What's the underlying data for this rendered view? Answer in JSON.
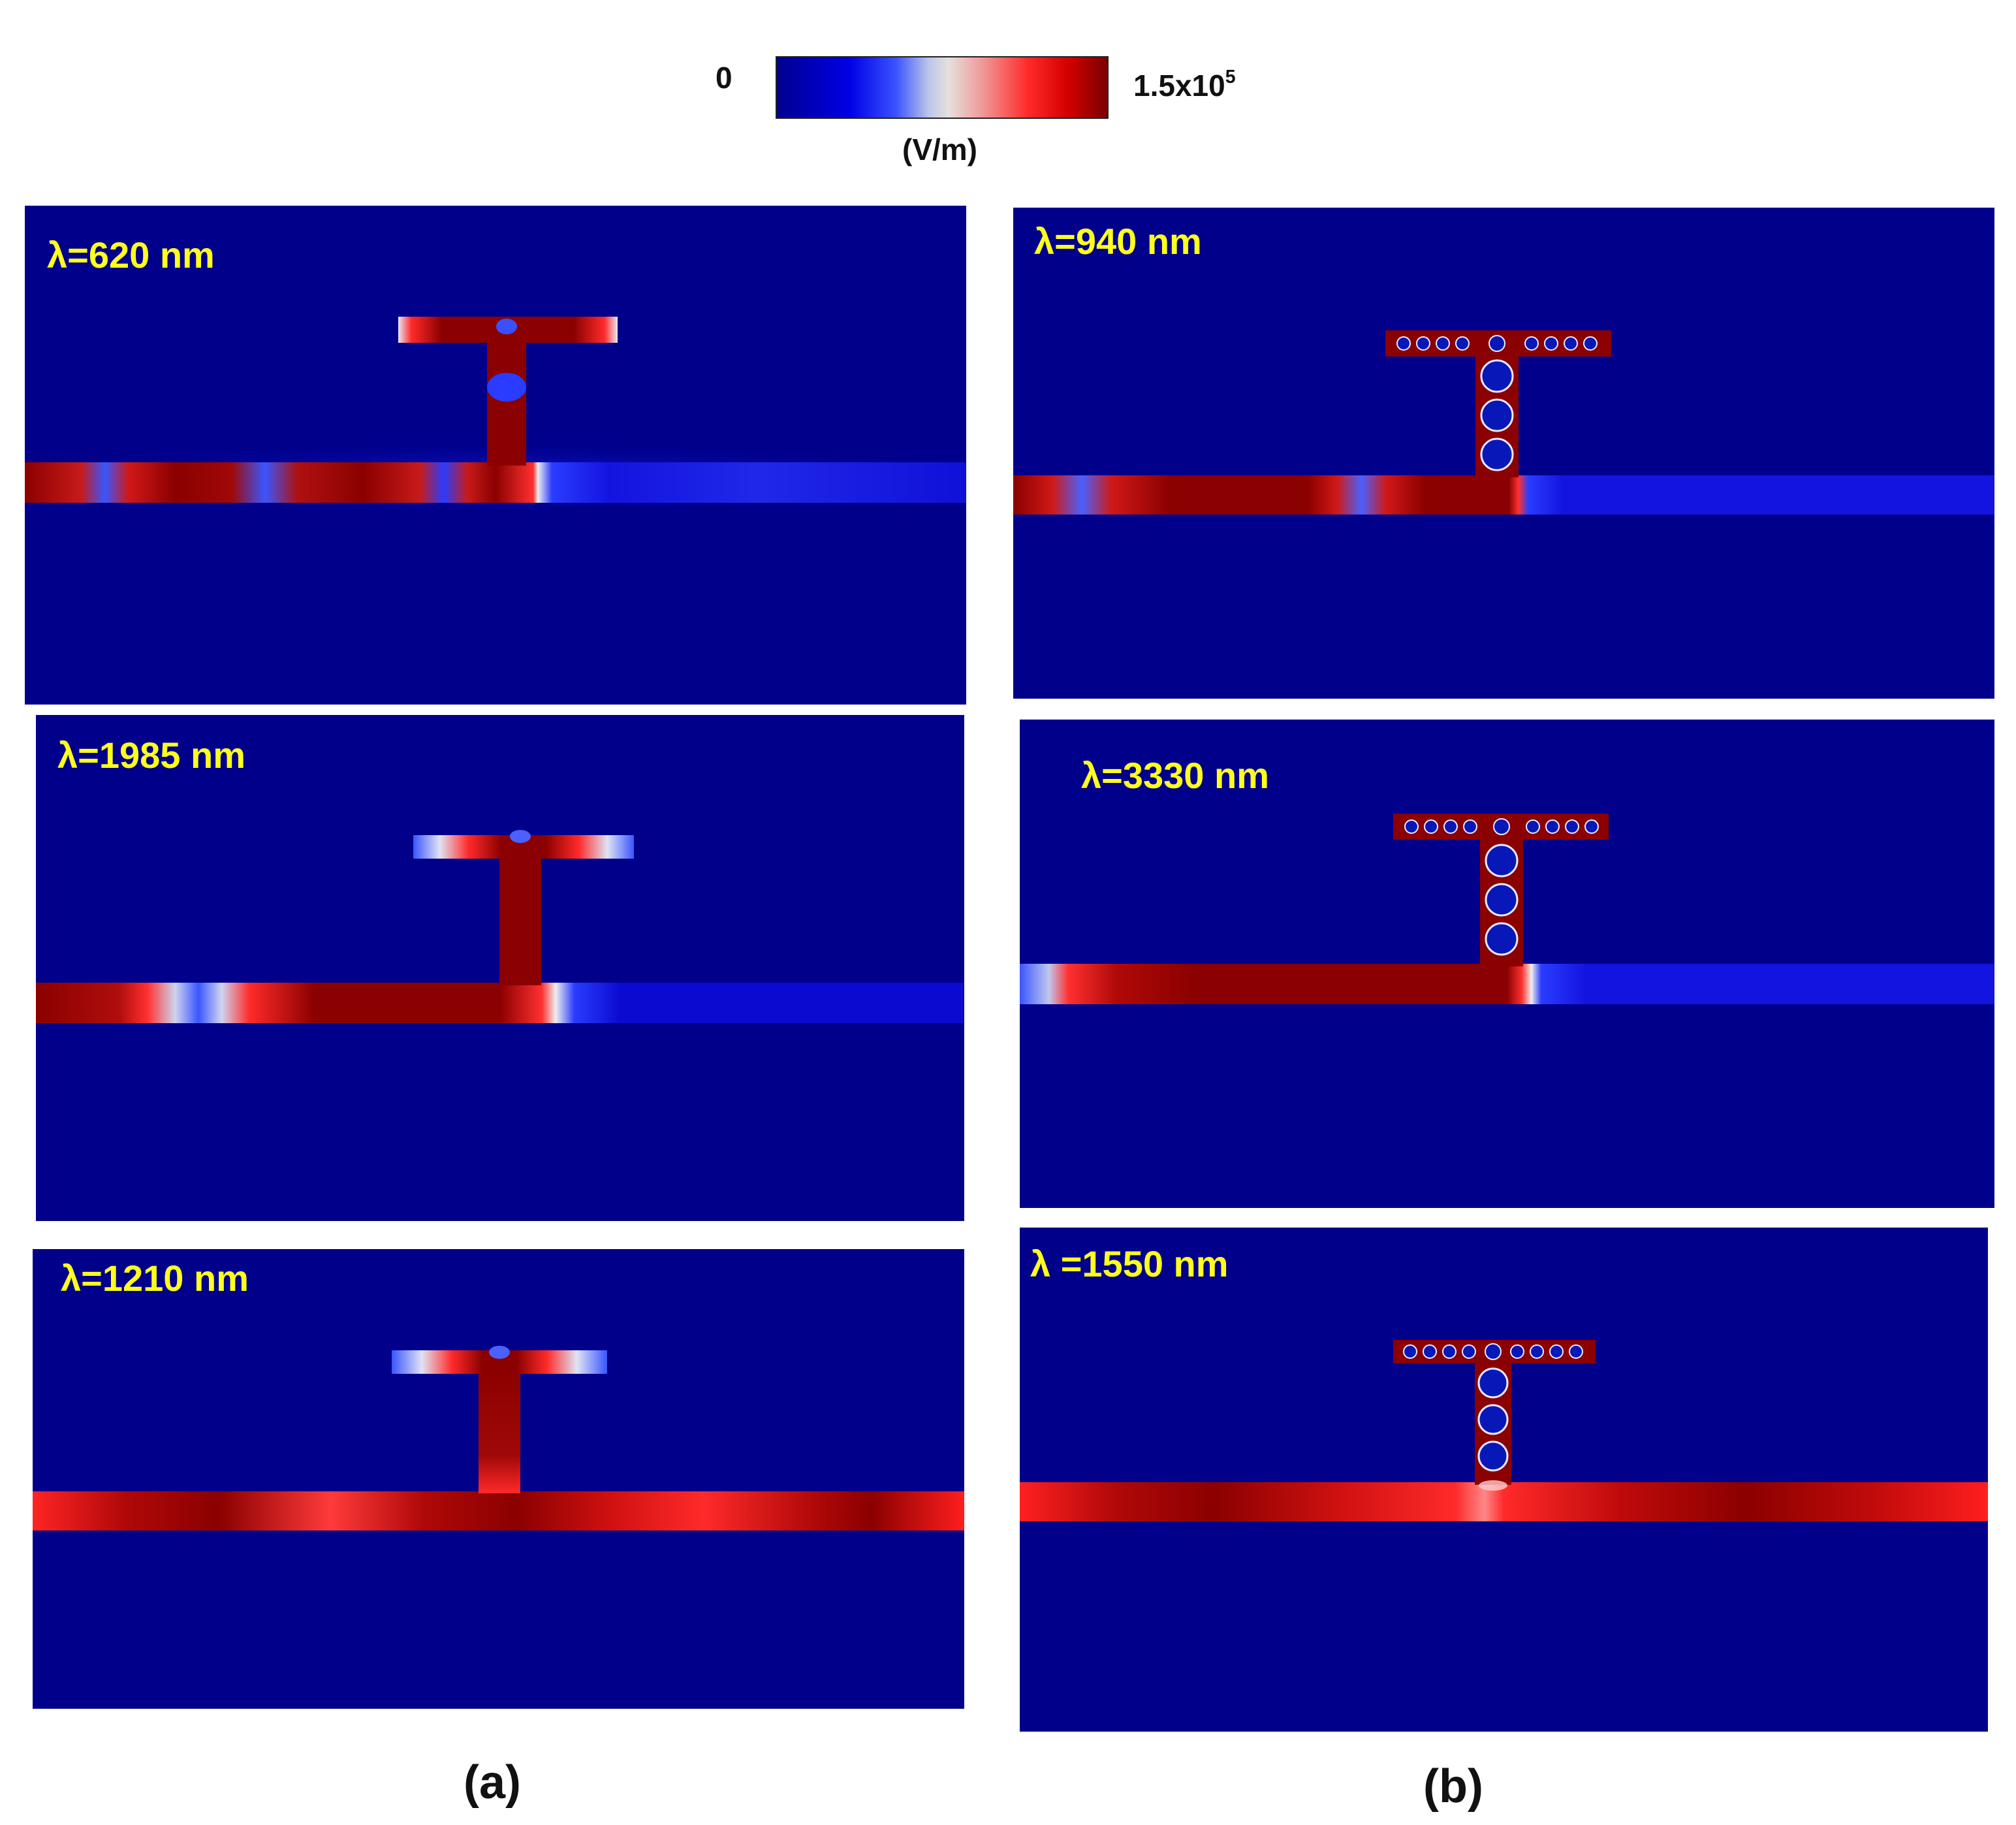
{
  "colorbar": {
    "min_label": "0",
    "max_label_base": "1.5x10",
    "max_label_exp": "5",
    "unit": "(V/m)",
    "colors": [
      "#00008f",
      "#0000e6",
      "#3a52ff",
      "#bcc6ea",
      "#e6e0dc",
      "#f09a9a",
      "#ff2a2a",
      "#d40000",
      "#7a0000"
    ]
  },
  "colors": {
    "background_field": "#00008a",
    "high_field": "#8b0000",
    "mid_field": "#ff1a1a",
    "label_yellow": "#ffff1e"
  },
  "column_labels": {
    "a": "(a)",
    "b": "(b)"
  },
  "panels": [
    {
      "label": "λ=620 nm",
      "column": "a",
      "row": 0,
      "style": "solid",
      "right_waveguide": "weak"
    },
    {
      "label": "λ=1985 nm",
      "column": "a",
      "row": 1,
      "style": "solid",
      "right_waveguide": "weak"
    },
    {
      "label": "λ=1210 nm",
      "column": "a",
      "row": 2,
      "style": "solid",
      "right_waveguide": "transmit"
    },
    {
      "label": "λ=940 nm",
      "column": "b",
      "row": 0,
      "style": "holes",
      "right_waveguide": "weak"
    },
    {
      "label": "λ=3330 nm",
      "column": "b",
      "row": 1,
      "style": "holes",
      "right_waveguide": "weak"
    },
    {
      "label": "λ =1550 nm",
      "column": "b",
      "row": 2,
      "style": "holes",
      "right_waveguide": "transmit"
    }
  ]
}
